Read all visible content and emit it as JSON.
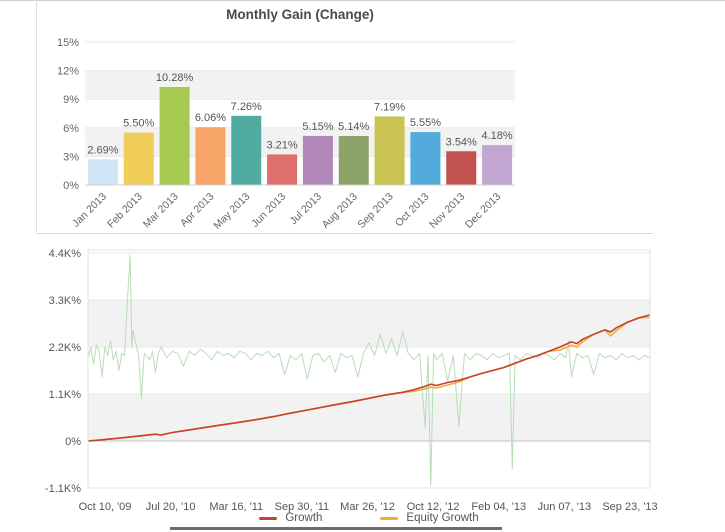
{
  "chart_data": [
    {
      "type": "bar",
      "title": "Monthly Gain (Change)",
      "categories": [
        "Jan 2013",
        "Feb 2013",
        "Mar 2013",
        "Apr 2013",
        "May 2013",
        "Jun 2013",
        "Jul 2013",
        "Aug 2013",
        "Sep 2013",
        "Oct 2013",
        "Nov 2013",
        "Dec 2013"
      ],
      "values": [
        2.69,
        5.5,
        10.28,
        6.06,
        7.26,
        3.21,
        5.15,
        5.14,
        7.19,
        5.55,
        3.54,
        4.18
      ],
      "value_labels": [
        "2.69%",
        "5.50%",
        "10.28%",
        "6.06%",
        "7.26%",
        "3.21%",
        "5.15%",
        "5.14%",
        "7.19%",
        "5.55%",
        "3.54%",
        "4.18%"
      ],
      "bar_colors": [
        "#cfe4f4",
        "#f0cc58",
        "#a6c94f",
        "#f6a467",
        "#52aba0",
        "#df6f6c",
        "#b087b8",
        "#8ca467",
        "#c8c352",
        "#52abdb",
        "#c25250",
        "#c2a6d2"
      ],
      "xlabel": "",
      "ylabel": "",
      "ylim": [
        0,
        15
      ],
      "yticks": [
        15,
        12,
        9,
        6,
        3,
        0
      ],
      "ytick_labels": [
        "15%",
        "12%",
        "9%",
        "6%",
        "3%",
        "0%"
      ],
      "grid": "horizontal-stripes-alternating"
    },
    {
      "type": "line",
      "title": "",
      "xlabel": "",
      "ylabel": "",
      "xtick_labels": [
        "Oct 10, '09",
        "Jul 20, '10",
        "Mar 16, '11",
        "Sep 30, '11",
        "Mar 26, '12",
        "Oct 12, '12",
        "Feb 04, '13",
        "Jun 07, '13",
        "Sep 23, '13"
      ],
      "yticks": [
        4.4,
        3.3,
        2.2,
        1.1,
        0,
        -1.1
      ],
      "ytick_labels": [
        "4.4K%",
        "3.3K%",
        "2.2K%",
        "1.1K%",
        "0%",
        "-1.1K%"
      ],
      "ylim": [
        -1.1,
        4.4
      ],
      "unit": "K%",
      "legend_position": "bottom",
      "series": [
        {
          "name": "Growth",
          "color": "#c8402f",
          "points": [
            [
              0,
              0
            ],
            [
              0.02,
              0.02
            ],
            [
              0.05,
              0.06
            ],
            [
              0.08,
              0.1
            ],
            [
              0.1,
              0.13
            ],
            [
              0.12,
              0.16
            ],
            [
              0.13,
              0.14
            ],
            [
              0.15,
              0.2
            ],
            [
              0.18,
              0.26
            ],
            [
              0.2,
              0.3
            ],
            [
              0.23,
              0.36
            ],
            [
              0.26,
              0.42
            ],
            [
              0.3,
              0.5
            ],
            [
              0.33,
              0.57
            ],
            [
              0.36,
              0.65
            ],
            [
              0.4,
              0.75
            ],
            [
              0.44,
              0.85
            ],
            [
              0.47,
              0.92
            ],
            [
              0.5,
              1.0
            ],
            [
              0.53,
              1.08
            ],
            [
              0.56,
              1.14
            ],
            [
              0.58,
              1.2
            ],
            [
              0.6,
              1.28
            ],
            [
              0.61,
              1.33
            ],
            [
              0.62,
              1.3
            ],
            [
              0.64,
              1.37
            ],
            [
              0.66,
              1.42
            ],
            [
              0.68,
              1.5
            ],
            [
              0.7,
              1.58
            ],
            [
              0.72,
              1.65
            ],
            [
              0.74,
              1.72
            ],
            [
              0.76,
              1.82
            ],
            [
              0.78,
              1.92
            ],
            [
              0.8,
              2.0
            ],
            [
              0.82,
              2.1
            ],
            [
              0.84,
              2.2
            ],
            [
              0.86,
              2.32
            ],
            [
              0.87,
              2.28
            ],
            [
              0.88,
              2.38
            ],
            [
              0.9,
              2.5
            ],
            [
              0.92,
              2.6
            ],
            [
              0.93,
              2.55
            ],
            [
              0.94,
              2.65
            ],
            [
              0.96,
              2.78
            ],
            [
              0.98,
              2.88
            ],
            [
              1,
              2.95
            ]
          ]
        },
        {
          "name": "Equity Growth",
          "color": "#f0ad3a",
          "points": [
            [
              0,
              0
            ],
            [
              0.02,
              0.02
            ],
            [
              0.05,
              0.06
            ],
            [
              0.08,
              0.1
            ],
            [
              0.1,
              0.13
            ],
            [
              0.12,
              0.16
            ],
            [
              0.13,
              0.14
            ],
            [
              0.15,
              0.2
            ],
            [
              0.18,
              0.26
            ],
            [
              0.2,
              0.3
            ],
            [
              0.23,
              0.36
            ],
            [
              0.26,
              0.42
            ],
            [
              0.3,
              0.5
            ],
            [
              0.33,
              0.57
            ],
            [
              0.36,
              0.65
            ],
            [
              0.4,
              0.75
            ],
            [
              0.44,
              0.85
            ],
            [
              0.47,
              0.92
            ],
            [
              0.5,
              1.0
            ],
            [
              0.53,
              1.08
            ],
            [
              0.56,
              1.14
            ],
            [
              0.58,
              1.16
            ],
            [
              0.6,
              1.22
            ],
            [
              0.61,
              1.26
            ],
            [
              0.62,
              1.24
            ],
            [
              0.64,
              1.31
            ],
            [
              0.66,
              1.38
            ],
            [
              0.68,
              1.5
            ],
            [
              0.7,
              1.58
            ],
            [
              0.72,
              1.65
            ],
            [
              0.74,
              1.72
            ],
            [
              0.76,
              1.82
            ],
            [
              0.78,
              1.92
            ],
            [
              0.8,
              2.0
            ],
            [
              0.82,
              2.1
            ],
            [
              0.84,
              2.13
            ],
            [
              0.86,
              2.24
            ],
            [
              0.87,
              2.2
            ],
            [
              0.88,
              2.32
            ],
            [
              0.9,
              2.5
            ],
            [
              0.92,
              2.6
            ],
            [
              0.93,
              2.46
            ],
            [
              0.94,
              2.58
            ],
            [
              0.96,
              2.78
            ],
            [
              0.98,
              2.88
            ],
            [
              1,
              2.9
            ]
          ]
        },
        {
          "name": "unlabeled-green-spikes",
          "color": "#b9dcb9",
          "points": [
            [
              0,
              1.95
            ],
            [
              0.005,
              2.2
            ],
            [
              0.01,
              1.8
            ],
            [
              0.015,
              2.25
            ],
            [
              0.02,
              2.1
            ],
            [
              0.025,
              1.5
            ],
            [
              0.03,
              2.2
            ],
            [
              0.035,
              2.0
            ],
            [
              0.04,
              2.35
            ],
            [
              0.045,
              1.9
            ],
            [
              0.05,
              2.1
            ],
            [
              0.055,
              1.65
            ],
            [
              0.06,
              2.05
            ],
            [
              0.065,
              2.0
            ],
            [
              0.07,
              3.25
            ],
            [
              0.075,
              4.35
            ],
            [
              0.078,
              2.2
            ],
            [
              0.08,
              2.6
            ],
            [
              0.085,
              2.3
            ],
            [
              0.09,
              2.0
            ],
            [
              0.095,
              1.0
            ],
            [
              0.1,
              2.05
            ],
            [
              0.11,
              1.9
            ],
            [
              0.115,
              2.1
            ],
            [
              0.12,
              1.6
            ],
            [
              0.125,
              2.05
            ],
            [
              0.13,
              2.2
            ],
            [
              0.14,
              1.95
            ],
            [
              0.15,
              2.1
            ],
            [
              0.16,
              2.05
            ],
            [
              0.17,
              1.75
            ],
            [
              0.18,
              2.1
            ],
            [
              0.19,
              2.0
            ],
            [
              0.2,
              2.15
            ],
            [
              0.21,
              2.05
            ],
            [
              0.22,
              1.9
            ],
            [
              0.23,
              2.1
            ],
            [
              0.24,
              2.0
            ],
            [
              0.25,
              2.05
            ],
            [
              0.26,
              1.95
            ],
            [
              0.27,
              2.1
            ],
            [
              0.28,
              2.05
            ],
            [
              0.29,
              1.9
            ],
            [
              0.3,
              2.05
            ],
            [
              0.31,
              2.0
            ],
            [
              0.32,
              2.1
            ],
            [
              0.33,
              1.95
            ],
            [
              0.34,
              2.05
            ],
            [
              0.35,
              1.55
            ],
            [
              0.36,
              2.0
            ],
            [
              0.37,
              1.9
            ],
            [
              0.38,
              2.05
            ],
            [
              0.39,
              1.45
            ],
            [
              0.4,
              2.0
            ],
            [
              0.41,
              2.05
            ],
            [
              0.42,
              1.85
            ],
            [
              0.43,
              2.0
            ],
            [
              0.44,
              1.6
            ],
            [
              0.45,
              2.05
            ],
            [
              0.46,
              1.95
            ],
            [
              0.47,
              2.0
            ],
            [
              0.48,
              1.5
            ],
            [
              0.49,
              2.05
            ],
            [
              0.5,
              2.3
            ],
            [
              0.51,
              2.0
            ],
            [
              0.52,
              2.5
            ],
            [
              0.53,
              2.05
            ],
            [
              0.54,
              2.4
            ],
            [
              0.55,
              2.0
            ],
            [
              0.56,
              2.55
            ],
            [
              0.57,
              2.05
            ],
            [
              0.58,
              1.9
            ],
            [
              0.59,
              2.05
            ],
            [
              0.6,
              0.3
            ],
            [
              0.605,
              2.0
            ],
            [
              0.61,
              -1.05
            ],
            [
              0.615,
              2.05
            ],
            [
              0.62,
              1.9
            ],
            [
              0.63,
              2.05
            ],
            [
              0.64,
              1.4
            ],
            [
              0.65,
              2.0
            ],
            [
              0.66,
              0.35
            ],
            [
              0.67,
              2.05
            ],
            [
              0.68,
              1.9
            ],
            [
              0.69,
              2.05
            ],
            [
              0.7,
              2.0
            ],
            [
              0.71,
              1.9
            ],
            [
              0.72,
              2.05
            ],
            [
              0.73,
              1.95
            ],
            [
              0.74,
              2.0
            ],
            [
              0.75,
              2.05
            ],
            [
              0.755,
              -0.65
            ],
            [
              0.76,
              2.0
            ],
            [
              0.77,
              1.9
            ],
            [
              0.78,
              2.05
            ],
            [
              0.79,
              2.0
            ],
            [
              0.8,
              1.95
            ],
            [
              0.81,
              2.05
            ],
            [
              0.82,
              2.0
            ],
            [
              0.83,
              1.9
            ],
            [
              0.84,
              2.05
            ],
            [
              0.85,
              1.95
            ],
            [
              0.855,
              2.35
            ],
            [
              0.86,
              1.5
            ],
            [
              0.87,
              2.05
            ],
            [
              0.88,
              1.95
            ],
            [
              0.89,
              2.0
            ],
            [
              0.9,
              1.55
            ],
            [
              0.91,
              2.05
            ],
            [
              0.92,
              1.95
            ],
            [
              0.93,
              2.0
            ],
            [
              0.94,
              1.9
            ],
            [
              0.95,
              2.05
            ],
            [
              0.96,
              1.95
            ],
            [
              0.97,
              2.0
            ],
            [
              0.98,
              1.9
            ],
            [
              0.99,
              2.0
            ],
            [
              1,
              1.95
            ]
          ]
        }
      ]
    }
  ],
  "legend": {
    "items": [
      {
        "label": "Growth",
        "color": "#c8402f"
      },
      {
        "label": "Equity Growth",
        "color": "#f0ad3a"
      }
    ]
  }
}
